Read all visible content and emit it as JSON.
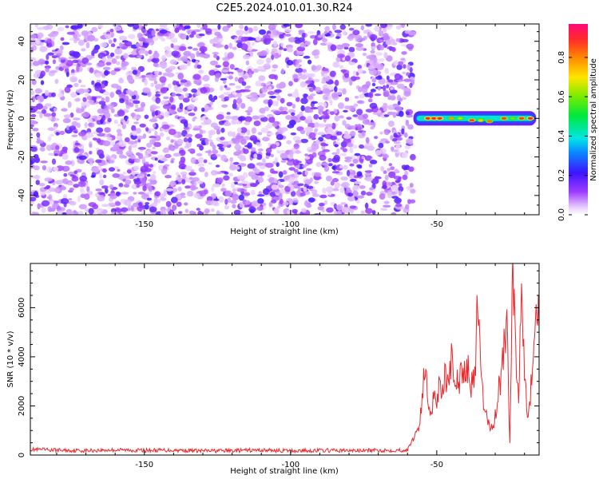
{
  "figure_title": "C2E5.2024.010.01.30.R24",
  "chart_data": [
    {
      "type": "heatmap",
      "title": "C2E5.2024.010.01.30.R24",
      "xlabel": "Height of straight line (km)",
      "ylabel": "Frequency (Hz)",
      "xlim": [
        -189,
        -15
      ],
      "ylim": [
        -50,
        49
      ],
      "xticks": [
        -150,
        -100,
        -50
      ],
      "yticks": [
        -40,
        -20,
        0,
        20,
        40
      ],
      "noise_extent_km": [
        -189,
        -58
      ],
      "signal_band": {
        "x_from": -58,
        "x_to": -16,
        "frequency_hz": 0
      },
      "hot_spots": [
        {
          "x": -53,
          "y": 0,
          "v": 0.95
        },
        {
          "x": -51,
          "y": 0,
          "v": 0.95
        },
        {
          "x": -49,
          "y": 0,
          "v": 0.95
        },
        {
          "x": -45,
          "y": 0,
          "v": 0.8
        },
        {
          "x": -42,
          "y": 0,
          "v": 0.65
        },
        {
          "x": -38,
          "y": -1,
          "v": 0.9
        },
        {
          "x": -35,
          "y": -1,
          "v": 0.75
        },
        {
          "x": -32,
          "y": -1.5,
          "v": 0.85
        },
        {
          "x": -27,
          "y": 0,
          "v": 0.9
        },
        {
          "x": -24,
          "y": 0,
          "v": 0.6
        },
        {
          "x": -21,
          "y": 0,
          "v": 0.9
        },
        {
          "x": -18,
          "y": 0,
          "v": 0.95
        }
      ],
      "colorbar": {
        "label": "Normalized spectral amplitude",
        "ticks": [
          "0.0",
          "0.2",
          "0.4",
          "0.6",
          "0.8"
        ],
        "range": [
          0,
          0.97
        ]
      }
    },
    {
      "type": "line",
      "title": "",
      "xlabel": "Height of straight line (km)",
      "ylabel": "SNR (10 * v/v)",
      "xlim": [
        -189,
        -15
      ],
      "ylim": [
        0,
        7800
      ],
      "xticks": [
        -150,
        -100,
        -50
      ],
      "yticks": [
        0,
        2000,
        4000,
        6000
      ],
      "color": "#e8282d",
      "series": [
        {
          "name": "SNR",
          "x": [
            -189,
            -180,
            -170,
            -160,
            -150,
            -140,
            -130,
            -120,
            -110,
            -100,
            -90,
            -80,
            -70,
            -60,
            -56,
            -54,
            -53,
            -52,
            -51,
            -50,
            -49,
            -48,
            -47,
            -46,
            -45,
            -44,
            -43,
            -42,
            -41,
            -40,
            -39,
            -38,
            -37,
            -36,
            -35,
            -34,
            -33,
            -32,
            -31,
            -30,
            -29,
            -28,
            -27,
            -26,
            -25,
            -24,
            -23,
            -22,
            -21,
            -20,
            -19,
            -18,
            -17,
            -16,
            -15
          ],
          "y": [
            230,
            200,
            180,
            210,
            190,
            200,
            170,
            180,
            200,
            170,
            190,
            180,
            190,
            200,
            1200,
            3500,
            2200,
            1800,
            2500,
            2200,
            3000,
            2800,
            3400,
            2600,
            3800,
            2700,
            3300,
            3000,
            4000,
            3100,
            3600,
            2800,
            3000,
            6300,
            3100,
            2200,
            1500,
            1300,
            1000,
            1600,
            2600,
            3100,
            4700,
            5000,
            600,
            7800,
            4200,
            2100,
            7500,
            3900,
            1700,
            2400,
            4000,
            6300,
            5200
          ]
        }
      ]
    }
  ]
}
